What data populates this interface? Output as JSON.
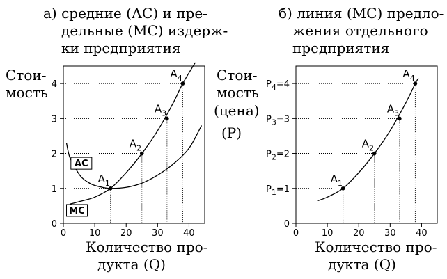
{
  "left_panel": {
    "title_lines": [
      "а) средние (АС) и пре-",
      "дельные (МС) издерж-",
      "ки предприятия"
    ],
    "ylabel_lines": [
      "Стои-",
      "мость"
    ],
    "xlabel_lines": [
      "Количество про-",
      "дукта (Q)"
    ]
  },
  "right_panel": {
    "title_lines": [
      "б) линия (МС) предло-",
      "жения отдельного",
      "предприятия"
    ],
    "ylabel_lines": [
      "Стои-",
      "мость",
      "(цена)",
      "(Р)"
    ],
    "xlabel_lines": [
      "Количество про-",
      "дукта (Q)"
    ]
  },
  "chart_data": [
    {
      "type": "line",
      "title": "а) средние (АС) и предельные (МС) издержки предприятия",
      "xlabel": "Количество продукта (Q)",
      "ylabel": "Стоимость",
      "xlim": [
        0,
        45
      ],
      "ylim": [
        0,
        4.5
      ],
      "x_ticks": [
        0,
        10,
        20,
        30,
        40
      ],
      "y_ticks": [
        0,
        1,
        2,
        3,
        4
      ],
      "series": [
        {
          "name": "MC",
          "x": [
            2,
            5,
            10,
            15,
            20,
            25,
            30,
            35,
            38,
            42
          ],
          "y": [
            0.55,
            0.62,
            0.75,
            1.0,
            1.45,
            2.0,
            2.65,
            3.45,
            4.0,
            4.6
          ]
        },
        {
          "name": "AC",
          "x": [
            1,
            2,
            4,
            6,
            9,
            12,
            15,
            20,
            25,
            30,
            35,
            40,
            44
          ],
          "y": [
            2.3,
            1.9,
            1.55,
            1.3,
            1.12,
            1.04,
            1.0,
            1.03,
            1.15,
            1.38,
            1.7,
            2.15,
            2.8
          ]
        }
      ],
      "points": [
        {
          "label": "A",
          "sub": "1",
          "x": 15,
          "y": 1
        },
        {
          "label": "A",
          "sub": "2",
          "x": 25,
          "y": 2
        },
        {
          "label": "A",
          "sub": "3",
          "x": 33,
          "y": 3
        },
        {
          "label": "A",
          "sub": "4",
          "x": 38,
          "y": 4
        }
      ]
    },
    {
      "type": "line",
      "title": "б) линия (МС) предложения отдельного предприятия",
      "xlabel": "Количество продукта (Q)",
      "ylabel": "Стоимость (цена) (Р)",
      "xlim": [
        0,
        45
      ],
      "ylim": [
        0,
        4.5
      ],
      "x_ticks": [
        0,
        10,
        20,
        30,
        40
      ],
      "y_tick_labels": [
        "P1=1",
        "P2=2",
        "P3=3",
        "P4=4"
      ],
      "series": [
        {
          "name": "MC",
          "x": [
            7,
            10,
            15,
            20,
            25,
            30,
            35,
            38,
            39
          ],
          "y": [
            0.65,
            0.75,
            1.0,
            1.45,
            2.0,
            2.65,
            3.45,
            4.0,
            4.15
          ]
        }
      ],
      "points": [
        {
          "label": "A",
          "sub": "1",
          "x": 15,
          "y": 1
        },
        {
          "label": "A",
          "sub": "2",
          "x": 25,
          "y": 2
        },
        {
          "label": "A",
          "sub": "3",
          "x": 33,
          "y": 3
        },
        {
          "label": "A",
          "sub": "4",
          "x": 38,
          "y": 4
        }
      ]
    }
  ]
}
